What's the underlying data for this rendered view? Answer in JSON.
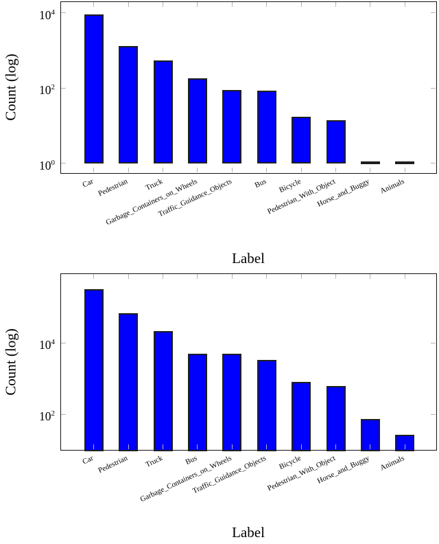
{
  "figure": {
    "background": "#ffffff"
  },
  "chart_data": [
    {
      "type": "bar",
      "title": "",
      "xlabel": "Label",
      "ylabel": "Count (log)",
      "yscale": "log",
      "grid": false,
      "legend": "none",
      "bar_color": "#0000ff",
      "bar_edge_color": "#1f1f1f",
      "axis_color": "#111111",
      "tick_color": "#b3b3b3",
      "ytick_labels": [
        "10^4",
        "10^2",
        "10^0"
      ],
      "ytick_exponents": [
        4,
        2,
        0
      ],
      "ylim": [
        0.5,
        19000
      ],
      "bar_base_value": 1,
      "categories": [
        "Car",
        "Pedestrian",
        "Truck",
        "Garbage_Containers_on_Wheels",
        "Traffic_Guidance_Objects",
        "Bus",
        "Bicycle",
        "Pedestrian_With_Object",
        "Horse_and_Buggy",
        "Animals"
      ],
      "values": [
        8500,
        1200,
        500,
        170,
        83,
        78,
        16,
        13,
        1,
        1
      ]
    },
    {
      "type": "bar",
      "title": "",
      "xlabel": "Label",
      "ylabel": "Count (log)",
      "yscale": "log",
      "grid": false,
      "legend": "none",
      "bar_color": "#0000ff",
      "bar_edge_color": "#1f1f1f",
      "axis_color": "#111111",
      "tick_color": "#b3b3b3",
      "ytick_labels": [
        "10^4",
        "10^2"
      ],
      "ytick_exponents": [
        4,
        2
      ],
      "ylim": [
        9,
        840000
      ],
      "bar_base_value": 9,
      "categories": [
        "Car",
        "Pedestrian",
        "Truck",
        "Bus",
        "Garbage_Containers_on_Wheels",
        "Traffic_Guidance_Objects",
        "Bicycle",
        "Pedestrian_With_Object",
        "Horse_and_Buggy",
        "Animals"
      ],
      "values": [
        290000,
        64000,
        20000,
        4700,
        4600,
        3100,
        740,
        580,
        68,
        25
      ]
    }
  ]
}
